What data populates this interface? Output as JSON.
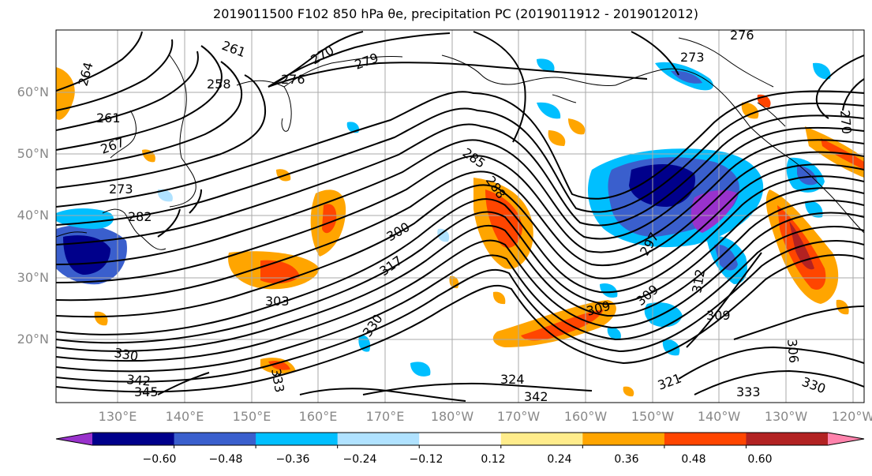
{
  "title": "2019011500 F102 850 hPa θe, precipitation PC (2019011912 - 2019012012)",
  "lat_labels": [
    "60°N",
    "50°N",
    "40°N",
    "30°N",
    "20°N"
  ],
  "lon_labels": [
    "130°E",
    "140°E",
    "150°E",
    "160°E",
    "170°E",
    "180°W",
    "170°W",
    "160°W",
    "150°W",
    "140°W",
    "130°W",
    "120°W"
  ],
  "contour_labels": [
    "261",
    "270",
    "279",
    "264",
    "258",
    "261",
    "267",
    "273",
    "282",
    "276",
    "273",
    "285",
    "288",
    "300",
    "317",
    "303",
    "330",
    "330",
    "342",
    "345",
    "333",
    "321",
    "309",
    "312",
    "309",
    "306",
    "333",
    "330",
    "297",
    "324",
    "342",
    "309",
    "276",
    "270"
  ],
  "colorbar": {
    "ticks": [
      "−0.60",
      "−0.48",
      "−0.36",
      "−0.24",
      "−0.12",
      "0.12",
      "0.24",
      "0.36",
      "0.48",
      "0.60"
    ],
    "colors": [
      "#9932cc",
      "#00008b",
      "#3a5fcd",
      "#00bfff",
      "#b0e2ff",
      "#ffffff",
      "#ffec8b",
      "#ffa500",
      "#ff4500",
      "#b22222",
      "#ff83ac"
    ]
  },
  "colors": {
    "contour": "#000000",
    "gridline": "#aaaaaa",
    "coastline": "#000000"
  }
}
